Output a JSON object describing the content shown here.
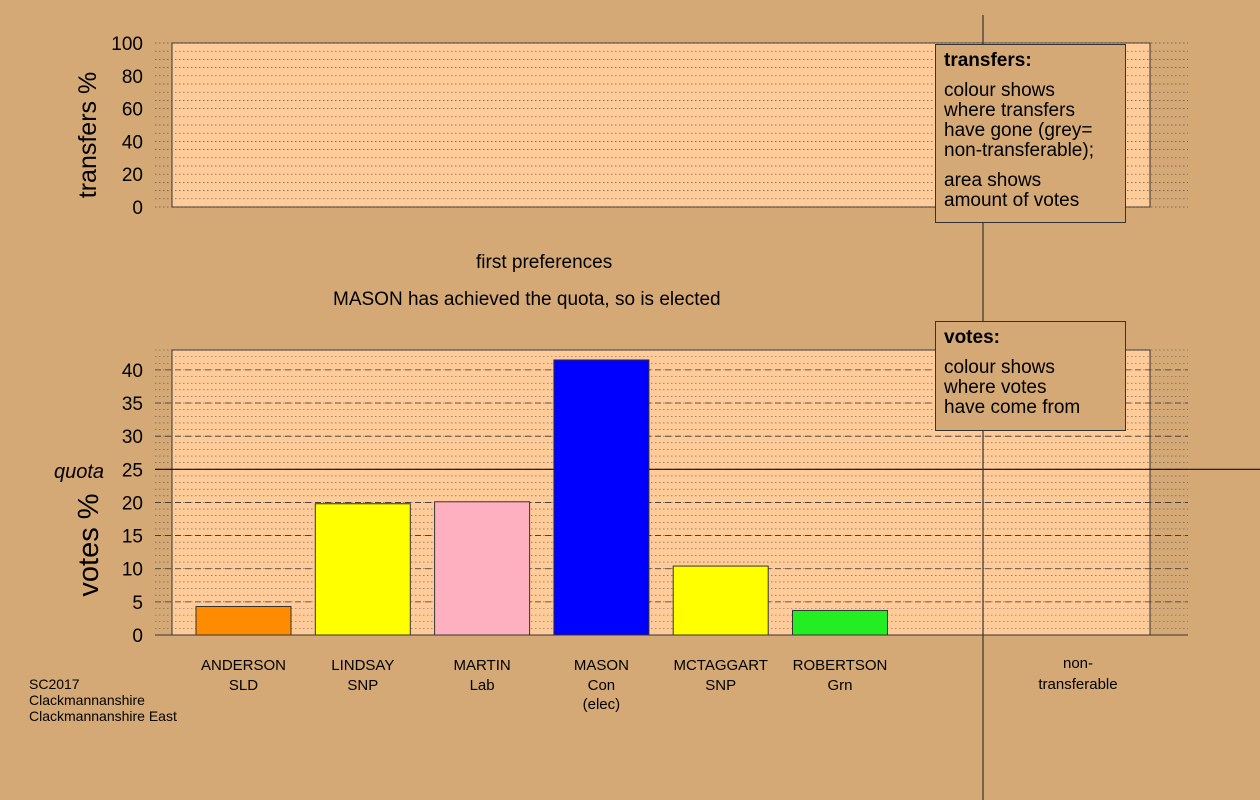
{
  "chart_data": [
    {
      "type": "bar",
      "title": "",
      "ylabel": "transfers %",
      "ylim": [
        0,
        100
      ],
      "yticks": [
        0,
        20,
        40,
        60,
        80,
        100
      ],
      "categories": [],
      "values": [],
      "grid": true
    },
    {
      "type": "bar",
      "ylabel": "votes %",
      "ylim": [
        0,
        43
      ],
      "yticks": [
        0,
        5,
        10,
        15,
        20,
        25,
        30,
        35,
        40
      ],
      "quota_label": "quota",
      "quota": 25,
      "grid": true,
      "categories": [
        {
          "name": "ANDERSON",
          "party": "SLD",
          "note": ""
        },
        {
          "name": "LINDSAY",
          "party": "SNP",
          "note": ""
        },
        {
          "name": "MARTIN",
          "party": "Lab",
          "note": ""
        },
        {
          "name": "MASON",
          "party": "Con",
          "note": "(elec)"
        },
        {
          "name": "MCTAGGART",
          "party": "SNP",
          "note": ""
        },
        {
          "name": "ROBERTSON",
          "party": "Grn",
          "note": ""
        }
      ],
      "values": [
        4.3,
        19.8,
        20.1,
        41.5,
        10.4,
        3.7
      ],
      "colors": [
        "#ff8c00",
        "#ffff00",
        "#ffb0c0",
        "#0000ff",
        "#ffff00",
        "#22ee22"
      ],
      "nontransferable_label_1": "non-",
      "nontransferable_label_2": "transferable"
    }
  ],
  "headings": {
    "stage": "first preferences",
    "status": "MASON has achieved the quota, so is elected"
  },
  "legend_transfers": {
    "title": "transfers:",
    "lines1": [
      "colour shows",
      "where transfers",
      "have gone (grey=",
      "non-transferable);"
    ],
    "lines2": [
      "area shows",
      "amount of votes"
    ]
  },
  "legend_votes": {
    "title": "votes:",
    "lines1": [
      "colour shows",
      "where votes",
      "have come from"
    ]
  },
  "footer": {
    "line1": "SC2017",
    "line2": "Clackmannanshire",
    "line3": "Clackmannanshire East"
  }
}
